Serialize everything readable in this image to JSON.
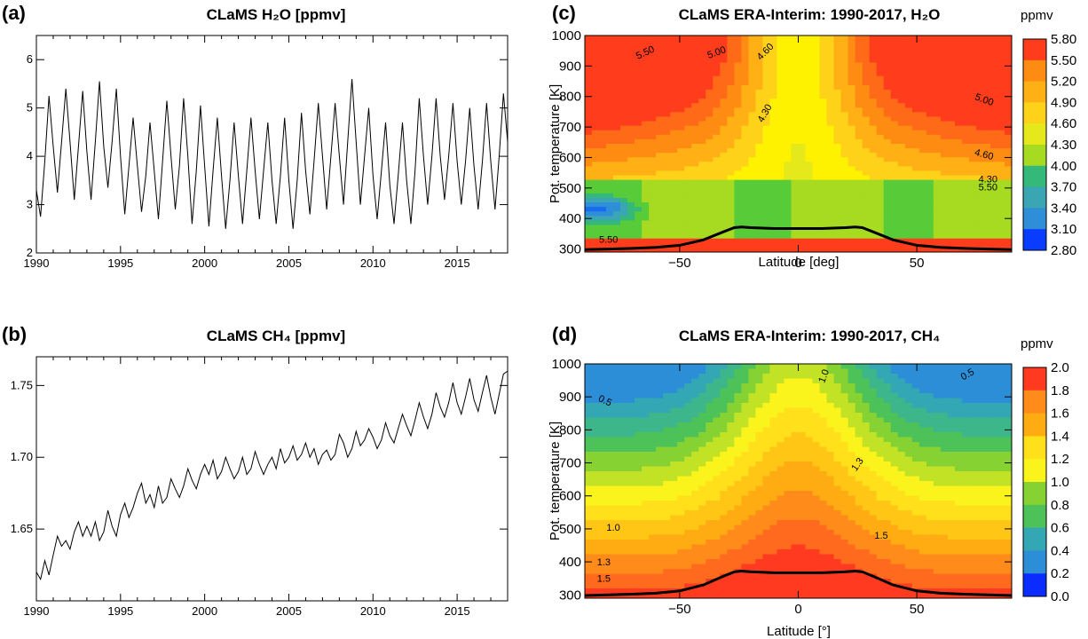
{
  "chart_data": [
    {
      "panel": "(a)",
      "type": "line",
      "title": "CLaMS H₂O [ppmv]",
      "xlim": [
        1990,
        2018
      ],
      "ylim": [
        2,
        6.5
      ],
      "xticks": [
        1990,
        1995,
        2000,
        2005,
        2010,
        2015
      ],
      "yticks": [
        2,
        3,
        4,
        5,
        6
      ],
      "series": [
        {
          "x": [
            1990.0,
            1990.25,
            1990.5,
            1990.75,
            1991.0,
            1991.25,
            1991.5,
            1991.75,
            1992.0,
            1992.25,
            1992.5,
            1992.75,
            1993.0,
            1993.25,
            1993.5,
            1993.75,
            1994.0,
            1994.25,
            1994.5,
            1994.75,
            1995.0,
            1995.25,
            1995.5,
            1995.75,
            1996.0,
            1996.25,
            1996.5,
            1996.75,
            1997.0,
            1997.25,
            1997.5,
            1997.75,
            1998.0,
            1998.25,
            1998.5,
            1998.75,
            1999.0,
            1999.25,
            1999.5,
            1999.75,
            2000.0,
            2000.25,
            2000.5,
            2000.75,
            2001.0,
            2001.25,
            2001.5,
            2001.75,
            2002.0,
            2002.25,
            2002.5,
            2002.75,
            2003.0,
            2003.25,
            2003.5,
            2003.75,
            2004.0,
            2004.25,
            2004.5,
            2004.75,
            2005.0,
            2005.25,
            2005.5,
            2005.75,
            2006.0,
            2006.25,
            2006.5,
            2006.75,
            2007.0,
            2007.25,
            2007.5,
            2007.75,
            2008.0,
            2008.25,
            2008.5,
            2008.75,
            2009.0,
            2009.25,
            2009.5,
            2009.75,
            2010.0,
            2010.25,
            2010.5,
            2010.75,
            2011.0,
            2011.25,
            2011.5,
            2011.75,
            2012.0,
            2012.25,
            2012.5,
            2012.75,
            2013.0,
            2013.25,
            2013.5,
            2013.75,
            2014.0,
            2014.25,
            2014.5,
            2014.75,
            2015.0,
            2015.25,
            2015.5,
            2015.75,
            2016.0,
            2016.25,
            2016.5,
            2016.75,
            2017.0,
            2017.25,
            2017.5,
            2017.75,
            2018.0
          ],
          "y": [
            3.3,
            2.75,
            3.9,
            5.25,
            4.2,
            3.25,
            4.3,
            5.4,
            4.3,
            3.1,
            4.2,
            5.35,
            4.1,
            3.1,
            4.3,
            5.55,
            4.2,
            3.35,
            4.3,
            5.4,
            4.0,
            2.8,
            3.8,
            4.8,
            3.8,
            2.85,
            3.6,
            4.7,
            3.7,
            2.7,
            3.9,
            5.15,
            4.0,
            2.9,
            3.8,
            5.2,
            4.0,
            2.6,
            3.7,
            5.05,
            3.8,
            2.55,
            3.7,
            4.8,
            3.6,
            2.5,
            3.5,
            4.7,
            3.6,
            2.6,
            3.7,
            4.8,
            3.7,
            2.7,
            3.7,
            4.7,
            3.5,
            2.6,
            3.6,
            4.8,
            3.5,
            2.5,
            3.5,
            4.9,
            3.7,
            2.8,
            3.9,
            5.1,
            4.0,
            2.9,
            4.0,
            5.1,
            4.0,
            3.0,
            4.3,
            5.6,
            4.3,
            3.0,
            4.0,
            5.0,
            3.6,
            2.7,
            3.7,
            4.7,
            3.4,
            2.6,
            3.6,
            4.7,
            3.5,
            2.6,
            3.7,
            5.2,
            4.0,
            3.0,
            4.0,
            5.2,
            4.0,
            3.1,
            4.0,
            5.1,
            3.9,
            3.0,
            3.9,
            5.0,
            3.8,
            2.9,
            3.9,
            5.1,
            3.9,
            2.9,
            4.0,
            5.3,
            4.3
          ]
        }
      ]
    },
    {
      "panel": "(b)",
      "type": "line",
      "title": "CLaMS CH₄ [ppmv]",
      "xlim": [
        1990,
        2018
      ],
      "ylim": [
        1.6,
        1.77
      ],
      "xticks": [
        1990,
        1995,
        2000,
        2005,
        2010,
        2015
      ],
      "yticks": [
        1.65,
        1.7,
        1.75
      ],
      "series": [
        {
          "x": [
            1990.0,
            1990.25,
            1990.5,
            1990.75,
            1991.0,
            1991.25,
            1991.5,
            1991.75,
            1992.0,
            1992.25,
            1992.5,
            1992.75,
            1993.0,
            1993.25,
            1993.5,
            1993.75,
            1994.0,
            1994.25,
            1994.5,
            1994.75,
            1995.0,
            1995.25,
            1995.5,
            1995.75,
            1996.0,
            1996.25,
            1996.5,
            1996.75,
            1997.0,
            1997.25,
            1997.5,
            1997.75,
            1998.0,
            1998.25,
            1998.5,
            1998.75,
            1999.0,
            1999.25,
            1999.5,
            1999.75,
            2000.0,
            2000.25,
            2000.5,
            2000.75,
            2001.0,
            2001.25,
            2001.5,
            2001.75,
            2002.0,
            2002.25,
            2002.5,
            2002.75,
            2003.0,
            2003.25,
            2003.5,
            2003.75,
            2004.0,
            2004.25,
            2004.5,
            2004.75,
            2005.0,
            2005.25,
            2005.5,
            2005.75,
            2006.0,
            2006.25,
            2006.5,
            2006.75,
            2007.0,
            2007.25,
            2007.5,
            2007.75,
            2008.0,
            2008.25,
            2008.5,
            2008.75,
            2009.0,
            2009.25,
            2009.5,
            2009.75,
            2010.0,
            2010.25,
            2010.5,
            2010.75,
            2011.0,
            2011.25,
            2011.5,
            2011.75,
            2012.0,
            2012.25,
            2012.5,
            2012.75,
            2013.0,
            2013.25,
            2013.5,
            2013.75,
            2014.0,
            2014.25,
            2014.5,
            2014.75,
            2015.0,
            2015.25,
            2015.5,
            2015.75,
            2016.0,
            2016.25,
            2016.5,
            2016.75,
            2017.0,
            2017.25,
            2017.5,
            2017.75,
            2018.0
          ],
          "y": [
            1.62,
            1.615,
            1.628,
            1.618,
            1.632,
            1.645,
            1.638,
            1.642,
            1.636,
            1.648,
            1.655,
            1.645,
            1.652,
            1.645,
            1.655,
            1.642,
            1.648,
            1.663,
            1.652,
            1.645,
            1.66,
            1.668,
            1.658,
            1.665,
            1.675,
            1.682,
            1.668,
            1.674,
            1.665,
            1.68,
            1.668,
            1.672,
            1.685,
            1.678,
            1.672,
            1.68,
            1.692,
            1.684,
            1.678,
            1.688,
            1.695,
            1.688,
            1.698,
            1.685,
            1.69,
            1.7,
            1.692,
            1.685,
            1.69,
            1.7,
            1.688,
            1.692,
            1.704,
            1.695,
            1.688,
            1.695,
            1.7,
            1.692,
            1.706,
            1.696,
            1.7,
            1.708,
            1.698,
            1.702,
            1.71,
            1.7,
            1.706,
            1.695,
            1.702,
            1.705,
            1.698,
            1.702,
            1.716,
            1.71,
            1.7,
            1.706,
            1.718,
            1.708,
            1.712,
            1.72,
            1.714,
            1.706,
            1.712,
            1.724,
            1.715,
            1.71,
            1.72,
            1.73,
            1.722,
            1.715,
            1.726,
            1.738,
            1.728,
            1.72,
            1.73,
            1.745,
            1.735,
            1.728,
            1.738,
            1.752,
            1.738,
            1.73,
            1.742,
            1.755,
            1.74,
            1.732,
            1.745,
            1.757,
            1.742,
            1.73,
            1.744,
            1.758,
            1.76
          ]
        }
      ]
    },
    {
      "panel": "(c)",
      "type": "heatmap",
      "title": "CLaMS ERA-Interim: 1990-2017, H₂O",
      "xlabel": "Latitude [deg]",
      "ylabel": "Pot. temperature [K]",
      "xlim": [
        -90,
        90
      ],
      "ylim": [
        290,
        1000
      ],
      "xticks": [
        -50,
        0,
        50
      ],
      "yticks": [
        300,
        400,
        500,
        600,
        700,
        800,
        900,
        1000
      ],
      "colorbar_unit": "ppmv",
      "colorbar_levels": [
        5.8,
        5.5,
        5.2,
        4.9,
        4.6,
        4.3,
        4.0,
        3.7,
        3.4,
        3.1,
        2.8
      ],
      "contour_labels": [
        "5.50",
        "5.00",
        "4.60",
        "4.30",
        "5.50",
        "5.00",
        "4.60",
        "4.30",
        "5.50"
      ]
    },
    {
      "panel": "(d)",
      "type": "heatmap",
      "title": "CLaMS ERA-Interim: 1990-2017, CH₄",
      "xlabel": "Latitude [°]",
      "ylabel": "Pot. temperature [K]",
      "xlim": [
        -90,
        90
      ],
      "ylim": [
        290,
        1000
      ],
      "xticks": [
        -50,
        0,
        50
      ],
      "yticks": [
        300,
        400,
        500,
        600,
        700,
        800,
        900,
        1000
      ],
      "colorbar_unit": "ppmv",
      "colorbar_levels": [
        2.0,
        1.8,
        1.6,
        1.4,
        1.2,
        1.0,
        0.8,
        0.6,
        0.4,
        0.2,
        0.0
      ],
      "contour_labels": [
        "0.5",
        "1.0",
        "0.5",
        "1.3",
        "1.0",
        "1.5",
        "1.3",
        "1.5"
      ]
    }
  ],
  "tropopause": {
    "lat": [
      -90,
      -80,
      -70,
      -60,
      -50,
      -40,
      -32,
      -27,
      -24,
      -20,
      -10,
      0,
      10,
      20,
      24,
      27,
      32,
      40,
      50,
      60,
      70,
      80,
      90
    ],
    "theta": [
      298,
      300,
      302,
      305,
      312,
      330,
      355,
      370,
      372,
      370,
      367,
      367,
      367,
      370,
      372,
      370,
      355,
      330,
      312,
      305,
      302,
      300,
      298
    ]
  },
  "colors": {
    "h2o": [
      "#0a3cff",
      "#1a6af0",
      "#2e8fd8",
      "#3aa6b4",
      "#35b97a",
      "#58cc38",
      "#a6db22",
      "#e5e81a",
      "#fff200",
      "#ffd21a",
      "#ffb014",
      "#ff8c12",
      "#ff6a18",
      "#ff3c1c"
    ],
    "ch4": [
      "#0a2cff",
      "#1c64f0",
      "#2c8ed6",
      "#34a7b4",
      "#3cb68a",
      "#4cc258",
      "#86d232",
      "#c2e226",
      "#fbf31c",
      "#ffe01a",
      "#ffc616",
      "#ffab12",
      "#ff8c1a",
      "#ff6a1e",
      "#ff3a20"
    ]
  }
}
